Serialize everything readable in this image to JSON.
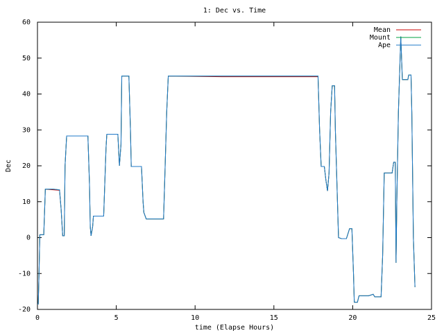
{
  "chart_data": {
    "type": "line",
    "title": "1: Dec vs. Time",
    "x_label": "time (Elapse Hours)",
    "y_label": "Dec",
    "x": [
      0,
      0.05,
      0.1,
      0.15,
      0.4,
      0.5,
      1.0,
      1.4,
      1.5,
      1.6,
      1.7,
      1.75,
      1.85,
      3.2,
      3.3,
      3.35,
      3.4,
      3.5,
      3.55,
      4.2,
      4.35,
      4.4,
      5.1,
      5.2,
      5.3,
      5.35,
      5.8,
      5.9,
      5.95,
      6.6,
      6.7,
      6.75,
      6.9,
      8.0,
      8.1,
      8.2,
      8.3,
      11.7,
      17.8,
      17.9,
      18.0,
      18.2,
      18.3,
      18.4,
      18.5,
      18.6,
      18.7,
      18.85,
      18.9,
      19.1,
      19.3,
      19.6,
      19.8,
      19.95,
      20.05,
      20.1,
      20.3,
      20.4,
      21.0,
      21.3,
      21.4,
      21.8,
      21.9,
      22.0,
      22.5,
      22.6,
      22.7,
      22.75,
      22.8,
      22.9,
      23.05,
      23.15,
      23.5,
      23.55,
      23.7,
      23.75,
      23.85,
      23.95
    ],
    "series": [
      {
        "name": "Mean",
        "color": "#cc0000",
        "values": [
          -18.5,
          -18.5,
          -10,
          0.8,
          0.8,
          13.5,
          13.3,
          13.2,
          8,
          0.5,
          0.5,
          20,
          28.3,
          28.3,
          15,
          3,
          0.5,
          3,
          6,
          6,
          25,
          28.8,
          28.8,
          20,
          26,
          45,
          45,
          30,
          19.8,
          19.8,
          10,
          7,
          5.2,
          5.2,
          19.8,
          35,
          45,
          44.8,
          44.8,
          30,
          19.8,
          19.8,
          16,
          13,
          18,
          35,
          42.3,
          42.3,
          30,
          0,
          -0.3,
          -0.3,
          2.5,
          2.5,
          -10,
          -18,
          -18,
          -16.2,
          -16.2,
          -15.8,
          -16.5,
          -16.5,
          -5,
          18,
          18,
          21,
          21,
          -7,
          10,
          35,
          56,
          44,
          44,
          45.3,
          45.3,
          35,
          0,
          -13.8
        ]
      },
      {
        "name": "Mount",
        "color": "#00a040",
        "values": [
          -18.5,
          -18.5,
          -10,
          0.8,
          0.8,
          13.5,
          13.5,
          13.3,
          8,
          0.5,
          0.5,
          20,
          28.3,
          28.3,
          15,
          3,
          0.5,
          3,
          6,
          6,
          25,
          28.8,
          28.8,
          20,
          26,
          45,
          45,
          30,
          19.8,
          19.8,
          10,
          7,
          5.2,
          5.2,
          19.8,
          35,
          45,
          45,
          45,
          30,
          19.8,
          19.8,
          16,
          13,
          18,
          35,
          42.3,
          42.3,
          30,
          0,
          -0.3,
          -0.3,
          2.5,
          2.5,
          -10,
          -18,
          -18,
          -16.2,
          -16.2,
          -15.8,
          -16.5,
          -16.5,
          -5,
          18,
          18,
          21,
          21,
          -7,
          10,
          35,
          56,
          44,
          44,
          45.3,
          45.3,
          35,
          0,
          -13.8
        ]
      },
      {
        "name": "Ape",
        "color": "#1f78c8",
        "values": [
          -18.5,
          -18.5,
          -10,
          0.8,
          0.8,
          13.5,
          13.5,
          13.3,
          8,
          0.5,
          0.5,
          20,
          28.3,
          28.3,
          15,
          3,
          0.5,
          3,
          6,
          6,
          25,
          28.8,
          28.8,
          20,
          26,
          45,
          45,
          30,
          19.8,
          19.8,
          10,
          7,
          5.2,
          5.2,
          19.8,
          35,
          45,
          45,
          45,
          30,
          19.8,
          19.8,
          16,
          13,
          18,
          35,
          42.3,
          42.3,
          30,
          0,
          -0.3,
          -0.3,
          2.5,
          2.5,
          -10,
          -18,
          -18,
          -16.2,
          -16.2,
          -15.8,
          -16.5,
          -16.5,
          -5,
          18,
          18,
          21,
          21,
          -7,
          10,
          35,
          56,
          44,
          44,
          45.3,
          45.3,
          35,
          0,
          -13.8
        ]
      }
    ],
    "xlim": [
      0,
      25
    ],
    "xticks": [
      0,
      5,
      10,
      15,
      20,
      25
    ],
    "ylim": [
      -20,
      60
    ],
    "yticks": [
      -20,
      -10,
      0,
      10,
      20,
      30,
      40,
      50,
      60
    ],
    "legend": "top-right"
  }
}
